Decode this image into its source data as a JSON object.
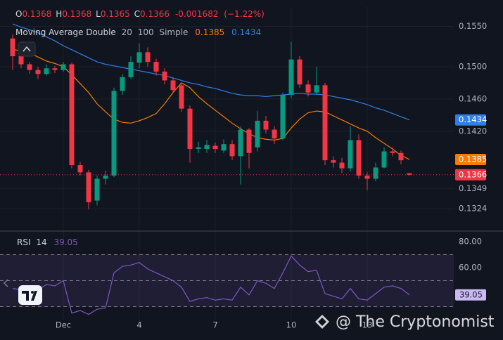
{
  "chart_data": [
    {
      "type": "candlestick",
      "header": {
        "keys": [
          "O",
          "H",
          "L",
          "C"
        ],
        "change": -0.001682,
        "change_pct": "(−1.22%)"
      },
      "indicator": {
        "name": "Moving Average Double",
        "method": "Simple"
      },
      "categories": [
        null,
        null,
        null,
        null,
        null,
        null,
        "Dec",
        null,
        null,
        null,
        null,
        null,
        null,
        null,
        null,
        "4",
        null,
        null,
        null,
        null,
        null,
        null,
        null,
        null,
        "7",
        null,
        null,
        null,
        null,
        null,
        null,
        null,
        null,
        "10",
        null,
        null,
        null,
        null,
        null,
        null,
        null,
        null,
        "13",
        null,
        null,
        null,
        null,
        null
      ],
      "open": [
        0.1535,
        0.1513,
        0.1503,
        0.1496,
        0.1491,
        0.1498,
        0.1496,
        0.1503,
        0.1378,
        0.1369,
        0.1334,
        0.1361,
        0.1365,
        0.147,
        0.1487,
        0.1505,
        0.1518,
        0.1506,
        0.1494,
        0.1483,
        0.1477,
        0.1448,
        0.1398,
        0.1398,
        0.1402,
        0.1396,
        0.1404,
        0.1389,
        0.1422,
        0.14,
        0.1433,
        0.1422,
        0.1411,
        0.1465,
        0.1509,
        0.1478,
        0.1468,
        0.1477,
        0.1384,
        0.1381,
        0.1374,
        0.1409,
        0.1365,
        0.1361,
        0.1375,
        0.1395,
        0.1393,
        0.1368
      ],
      "high": [
        0.154,
        0.1518,
        0.1506,
        0.15,
        0.1503,
        0.1501,
        0.1506,
        0.1505,
        0.1382,
        0.1372,
        0.1365,
        0.1371,
        0.1474,
        0.1491,
        0.1513,
        0.1529,
        0.1524,
        0.151,
        0.1498,
        0.1487,
        0.148,
        0.1452,
        0.1407,
        0.1409,
        0.1406,
        0.141,
        0.1409,
        0.1426,
        0.1424,
        0.1445,
        0.1439,
        0.1426,
        0.1468,
        0.1531,
        0.1513,
        0.1483,
        0.15,
        0.148,
        0.1389,
        0.1387,
        0.1426,
        0.1416,
        0.1369,
        0.1381,
        0.14,
        0.14,
        0.1396,
        0.1368
      ],
      "low": [
        0.1496,
        0.1498,
        0.1491,
        0.1485,
        0.1489,
        0.1492,
        0.1494,
        0.1374,
        0.1365,
        0.1323,
        0.1328,
        0.1354,
        0.1363,
        0.1465,
        0.1485,
        0.1498,
        0.15,
        0.1489,
        0.1478,
        0.1468,
        0.1444,
        0.1381,
        0.1393,
        0.1393,
        0.1393,
        0.1393,
        0.1384,
        0.1354,
        0.1374,
        0.1395,
        0.1417,
        0.1404,
        0.1409,
        0.1461,
        0.1474,
        0.1463,
        0.1465,
        0.1378,
        0.1375,
        0.1368,
        0.137,
        0.1361,
        0.1347,
        0.1358,
        0.1374,
        0.1389,
        0.1379,
        0.1365
      ],
      "close": [
        0.1513,
        0.1503,
        0.1496,
        0.1491,
        0.1498,
        0.1496,
        0.1503,
        0.1378,
        0.1369,
        0.1332,
        0.1361,
        0.1365,
        0.147,
        0.1487,
        0.1506,
        0.1518,
        0.1506,
        0.1494,
        0.1483,
        0.1471,
        0.1448,
        0.1398,
        0.14,
        0.1403,
        0.1398,
        0.1404,
        0.1389,
        0.1422,
        0.1393,
        0.1433,
        0.1422,
        0.1411,
        0.1465,
        0.1509,
        0.1478,
        0.1468,
        0.1477,
        0.1384,
        0.1381,
        0.1374,
        0.1409,
        0.1365,
        0.1361,
        0.1375,
        0.1395,
        0.1393,
        0.1384,
        0.1366
      ],
      "up_color": "#089981",
      "down_color": "#f23645",
      "series": [
        {
          "name": "20",
          "color": "#f57c00",
          "values": [
            0.1522,
            0.1519,
            0.1517,
            0.1512,
            0.1507,
            0.1504,
            0.15,
            0.149,
            0.1479,
            0.1468,
            0.1454,
            0.1444,
            0.1435,
            0.1431,
            0.143,
            0.1433,
            0.1437,
            0.1442,
            0.1454,
            0.1468,
            0.148,
            0.1474,
            0.1463,
            0.1454,
            0.1446,
            0.1438,
            0.143,
            0.1423,
            0.1417,
            0.1412,
            0.141,
            0.1409,
            0.1411,
            0.1424,
            0.1435,
            0.1443,
            0.1445,
            0.1444,
            0.1439,
            0.1434,
            0.1429,
            0.1424,
            0.142,
            0.1412,
            0.1405,
            0.1398,
            0.139,
            0.1385
          ]
        },
        {
          "name": "100",
          "color": "#2f7fe8",
          "values": [
            0.1553,
            0.1549,
            0.1546,
            0.1542,
            0.1537,
            0.1532,
            0.1526,
            0.1521,
            0.1516,
            0.1511,
            0.1506,
            0.1503,
            0.1501,
            0.1499,
            0.1497,
            0.1495,
            0.1493,
            0.1491,
            0.1489,
            0.1486,
            0.1483,
            0.148,
            0.1478,
            0.1475,
            0.1473,
            0.147,
            0.1467,
            0.1465,
            0.1464,
            0.1464,
            0.1463,
            0.1464,
            0.1465,
            0.1466,
            0.1467,
            0.1466,
            0.1466,
            0.1465,
            0.1463,
            0.1461,
            0.1459,
            0.1456,
            0.1453,
            0.1449,
            0.1446,
            0.1442,
            0.1438,
            0.1434
          ]
        }
      ],
      "ylim": [
        0.1297,
        0.1574
      ],
      "yticks": [
        0.1324,
        0.1349,
        {
          "value": 0.142,
          "label": "0.1420"
        },
        {
          "value": 0.146,
          "label": "0.1460"
        },
        {
          "value": 0.15,
          "label": "0.1500"
        },
        {
          "value": 0.155,
          "label": "0.1550"
        }
      ],
      "grid": true
    },
    {
      "type": "line",
      "name": "RSI",
      "period": 14,
      "color": "#7e57c2",
      "values": [
        44,
        43,
        45,
        43,
        47,
        46,
        50,
        25,
        27,
        24,
        28,
        29,
        56,
        61,
        62,
        64,
        59,
        56,
        53,
        50,
        45,
        34,
        36,
        37,
        35,
        36,
        35,
        45,
        39,
        50,
        48,
        44,
        56,
        69,
        62,
        57,
        58,
        40,
        38,
        36,
        44,
        36,
        35,
        40,
        45,
        46,
        44,
        39.05
      ],
      "ylim": [
        20,
        87.6
      ],
      "yticks": [
        {
          "value": 60,
          "label": "60.00"
        },
        {
          "value": 80,
          "label": "80.00"
        }
      ],
      "levels": [
        70,
        50,
        30
      ]
    },
    {
      "watermark": "@ The Cryptonomist"
    }
  ]
}
